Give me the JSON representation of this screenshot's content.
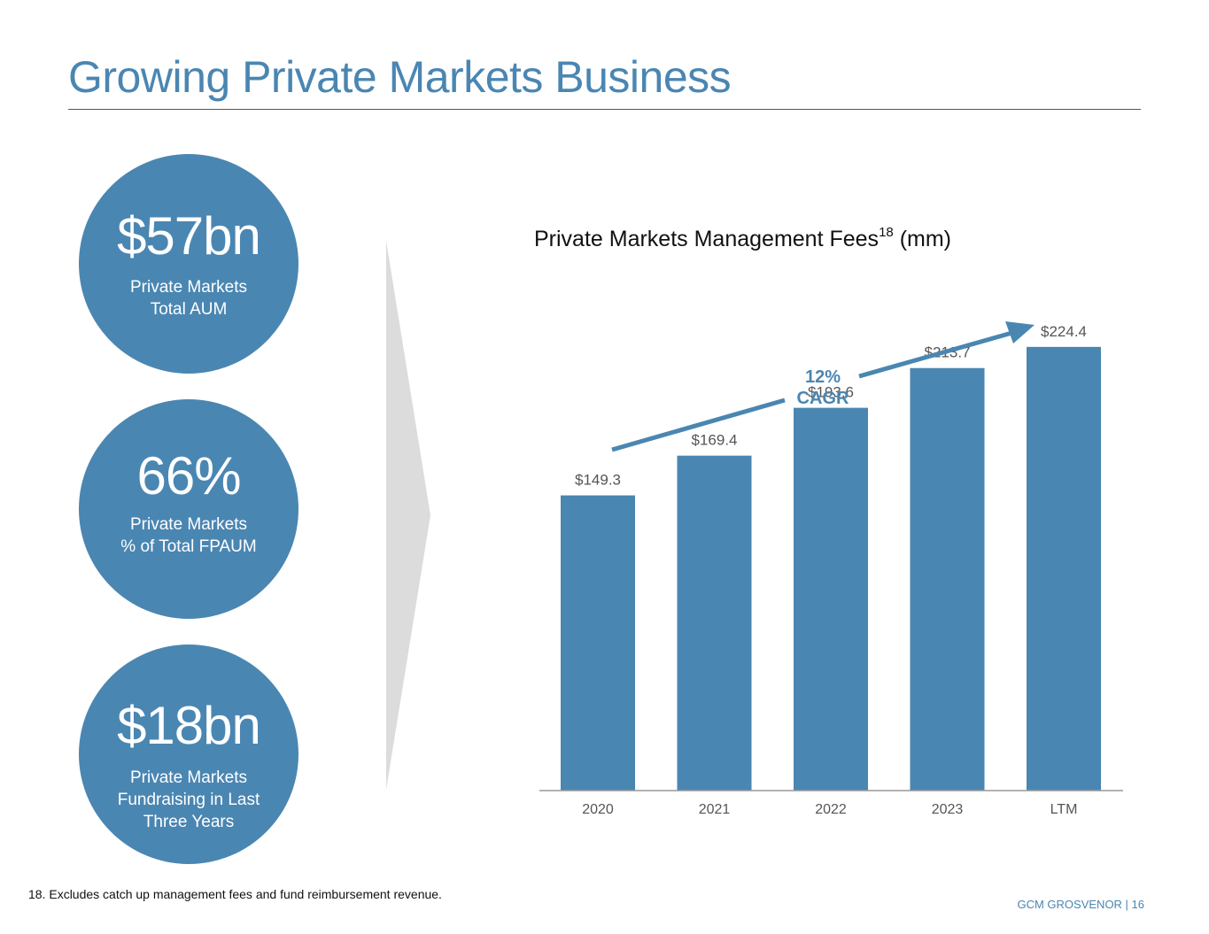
{
  "page": {
    "title": "Growing Private Markets Business",
    "footnote": "18. Excludes catch up management fees and fund reimbursement revenue.",
    "footer": "GCM GROSVENOR | 16"
  },
  "stats": [
    {
      "value": "$57bn",
      "label_lines": [
        "Private Markets",
        "Total AUM"
      ]
    },
    {
      "value": "66%",
      "label_lines": [
        "Private Markets",
        "% of Total FPAUM"
      ]
    },
    {
      "value": "$18bn",
      "label_lines": [
        "Private Markets",
        "Fundraising in Last",
        "Three Years"
      ]
    }
  ],
  "colors": {
    "accent": "#4a86b2",
    "chevron": "#dcdcdc",
    "axis": "#999999",
    "label": "#555555"
  },
  "chart_data": {
    "type": "bar",
    "title": "Private Markets Management Fees",
    "title_superscript": "18",
    "title_suffix": "(mm)",
    "categories": [
      "2020",
      "2021",
      "2022",
      "2023",
      "LTM"
    ],
    "values": [
      149.3,
      169.4,
      193.6,
      213.7,
      224.4
    ],
    "data_labels": [
      "$149.3",
      "$169.4",
      "$193.6",
      "$213.7",
      "$224.4"
    ],
    "ylim": [
      0,
      270
    ],
    "annotation": {
      "line1": "12%",
      "line2": "CAGR"
    },
    "grid": false,
    "legend": "none"
  }
}
